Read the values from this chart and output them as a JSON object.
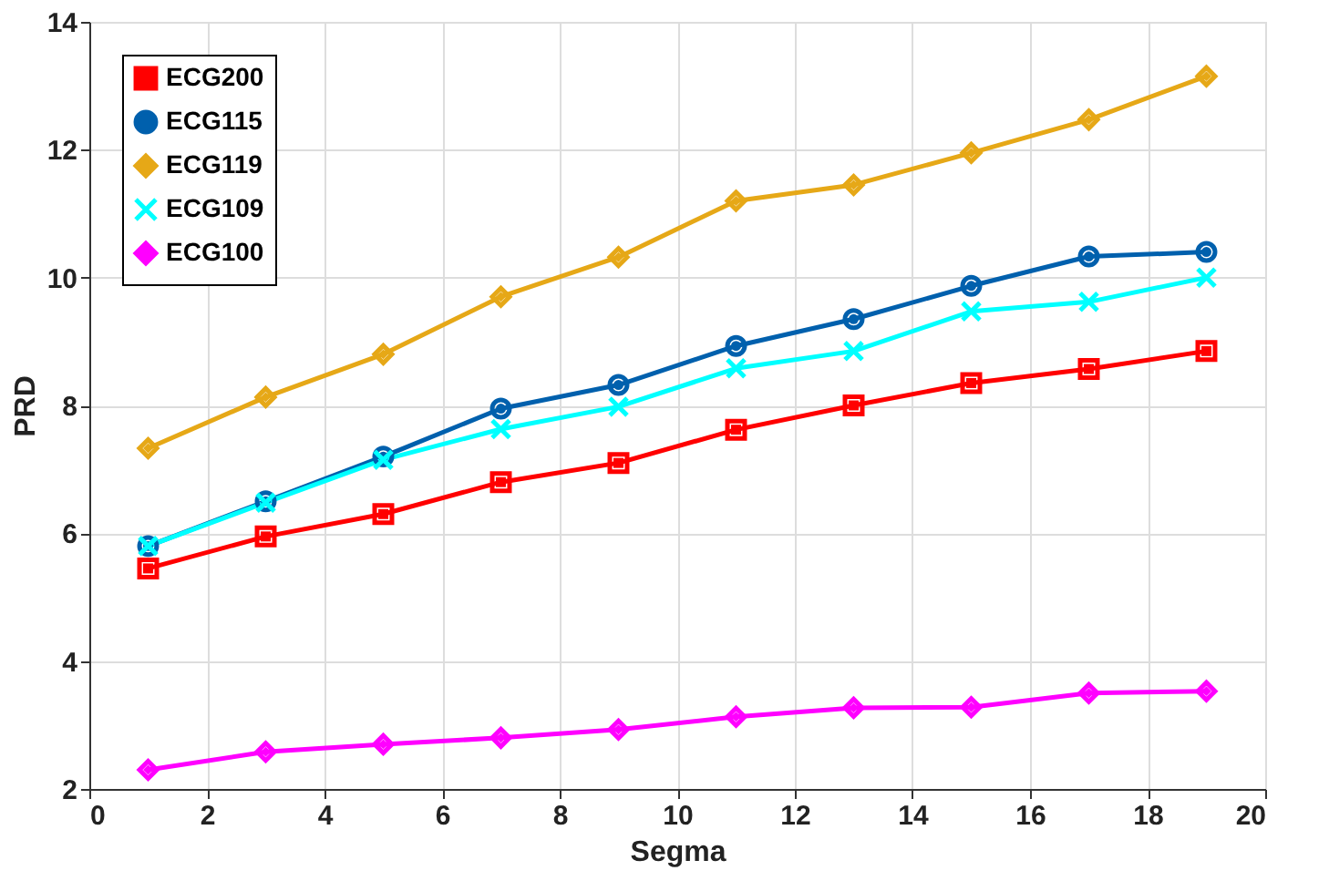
{
  "chart_data": {
    "type": "line",
    "xlabel": "Segma",
    "ylabel": "PRD",
    "x": [
      1,
      3,
      5,
      7,
      9,
      11,
      13,
      15,
      17,
      19
    ],
    "series": [
      {
        "name": "ECG200",
        "color": "#ff0000",
        "marker": "square",
        "values": [
          5.45,
          5.95,
          6.3,
          6.8,
          7.1,
          7.62,
          8.0,
          8.35,
          8.57,
          8.85
        ]
      },
      {
        "name": "ECG115",
        "color": "#0060ad",
        "marker": "circle",
        "values": [
          5.8,
          6.5,
          7.2,
          7.95,
          8.32,
          8.93,
          9.35,
          9.87,
          10.33,
          10.4
        ]
      },
      {
        "name": "ECG119",
        "color": "#e6a817",
        "marker": "diamond",
        "values": [
          7.33,
          8.13,
          8.8,
          9.7,
          10.32,
          11.2,
          11.45,
          11.95,
          12.47,
          13.15
        ]
      },
      {
        "name": "ECG109",
        "color": "#00ffff",
        "marker": "cross",
        "values": [
          5.8,
          6.48,
          7.15,
          7.63,
          7.98,
          8.58,
          8.85,
          9.47,
          9.62,
          10.0
        ]
      },
      {
        "name": "ECG100",
        "color": "#ff00ff",
        "marker": "diamond",
        "values": [
          2.3,
          2.58,
          2.7,
          2.8,
          2.93,
          3.13,
          3.27,
          3.28,
          3.5,
          3.53
        ]
      }
    ],
    "xlim": [
      0,
      20
    ],
    "xticks": [
      0,
      2,
      4,
      6,
      8,
      10,
      12,
      14,
      16,
      18,
      20
    ],
    "ylim": [
      2,
      14
    ],
    "yticks": [
      2,
      4,
      6,
      8,
      10,
      12,
      14
    ],
    "grid": true,
    "legend": "top left",
    "line_style": "solid"
  }
}
